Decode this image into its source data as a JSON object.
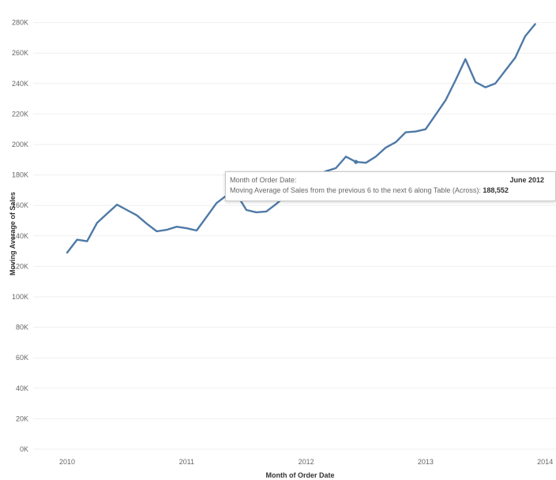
{
  "chart_data": {
    "type": "line",
    "xlabel": "Month of Order Date",
    "ylabel": "Moving Average of Sales",
    "x_ticks": [
      "2010",
      "2011",
      "2012",
      "2013",
      "2014"
    ],
    "y_ticks": [
      "0K",
      "20K",
      "40K",
      "60K",
      "80K",
      "100K",
      "120K",
      "140K",
      "160K",
      "180K",
      "200K",
      "220K",
      "240K",
      "260K",
      "280K"
    ],
    "ylim": [
      0,
      285000
    ],
    "xlim": [
      2009.88,
      2014.11
    ],
    "grid": "horizontal",
    "color": "#4e79a7",
    "series": [
      {
        "x": [
          2010.0,
          2010.083,
          2010.167,
          2010.25,
          2010.333,
          2010.417,
          2010.5,
          2010.583,
          2010.667,
          2010.75,
          2010.833,
          2010.917,
          2011.0,
          2011.083,
          2011.167,
          2011.25,
          2011.333,
          2011.417,
          2011.5,
          2011.583,
          2011.667,
          2011.75,
          2011.833,
          2011.917,
          2012.0,
          2012.083,
          2012.167,
          2012.25,
          2012.333,
          2012.417,
          2012.5,
          2012.583,
          2012.667,
          2012.75,
          2012.833,
          2012.917,
          2013.0,
          2013.083,
          2013.167,
          2013.25,
          2013.333,
          2013.417,
          2013.5,
          2013.583,
          2013.667,
          2013.75,
          2013.833,
          2013.917
        ],
        "y": [
          129000,
          137500,
          136500,
          148500,
          154500,
          160500,
          157000,
          153500,
          148000,
          143000,
          144000,
          146000,
          145000,
          143500,
          152500,
          161500,
          166500,
          167500,
          157000,
          155500,
          156000,
          161000,
          166500,
          172000,
          176000,
          179500,
          182500,
          184500,
          192000,
          188552,
          188000,
          192000,
          198000,
          201500,
          208000,
          208500,
          210000,
          219500,
          229000,
          242000,
          256000,
          241000,
          237500,
          240000,
          248500,
          257000,
          271000,
          279000
        ]
      }
    ],
    "tooltip": {
      "row1_label": "Month of Order Date:",
      "row1_value": "June 2012",
      "row2_label": "Moving Average of Sales from the previous 6 to the next 6 along Table (Across):",
      "row2_value": "188,552"
    }
  }
}
